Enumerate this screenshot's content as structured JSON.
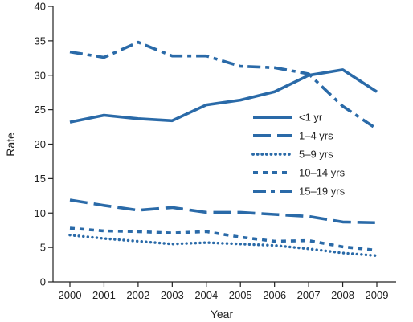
{
  "chart_data": {
    "type": "line",
    "title": "",
    "xlabel": "Year",
    "ylabel": "Rate",
    "x": [
      2000,
      2001,
      2002,
      2003,
      2004,
      2005,
      2006,
      2007,
      2008,
      2009
    ],
    "ylim": [
      0,
      40
    ],
    "yticks": [
      0,
      5,
      10,
      15,
      20,
      25,
      30,
      35,
      40
    ],
    "grid": false,
    "legend_position": "right",
    "color": "#2a6aa8",
    "series": [
      {
        "name": "<1 yr",
        "style": "solid",
        "values": [
          23.2,
          24.2,
          23.7,
          23.4,
          25.7,
          26.4,
          27.6,
          30.0,
          30.8,
          27.6
        ]
      },
      {
        "name": "1–4 yrs",
        "style": "long-dash",
        "values": [
          11.9,
          11.1,
          10.4,
          10.8,
          10.1,
          10.1,
          9.8,
          9.5,
          8.7,
          8.6
        ]
      },
      {
        "name": "5–9 yrs",
        "style": "dotted",
        "values": [
          6.8,
          6.3,
          5.9,
          5.5,
          5.7,
          5.5,
          5.3,
          4.8,
          4.2,
          3.8
        ]
      },
      {
        "name": "10–14 yrs",
        "style": "short-dash",
        "values": [
          7.8,
          7.4,
          7.3,
          7.1,
          7.3,
          6.5,
          5.9,
          6.0,
          5.1,
          4.6
        ]
      },
      {
        "name": "15–19 yrs",
        "style": "dash-dot",
        "values": [
          33.4,
          32.6,
          34.8,
          32.8,
          32.8,
          31.3,
          31.1,
          30.2,
          25.5,
          22.2
        ]
      }
    ]
  }
}
